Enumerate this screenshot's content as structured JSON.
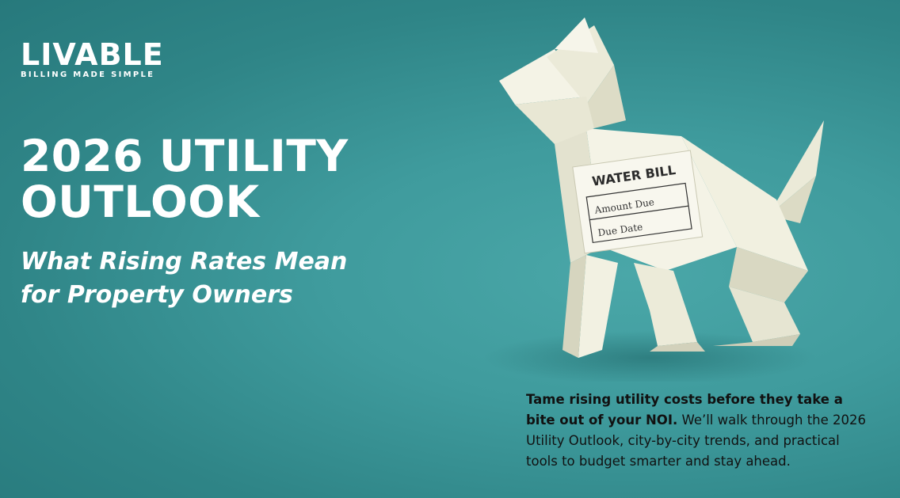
{
  "brand": {
    "name": "LIVABLE",
    "tagline": "BILLING MADE SIMPLE"
  },
  "headline": {
    "line1": "2026 UTILITY",
    "line2": "OUTLOOK"
  },
  "subheadline": {
    "line1": "What Rising Rates Mean",
    "line2": "for Property Owners"
  },
  "illustration": {
    "icon": "origami-dog-icon",
    "bill_title": "WATER BILL",
    "bill_field1": "Amount Due",
    "bill_field2": "Due Date"
  },
  "description": {
    "bold": "Tame rising utility costs before they take a bite out of your NOI.",
    "regular": " We’ll walk through the 2026 Utility Outlook, city-by-city trends, and practical tools to budget smarter and stay ahead."
  },
  "colors": {
    "background": "#3f9b9d",
    "text_light": "#ffffff",
    "text_dark": "#111111",
    "paper": "#f4f3e6"
  }
}
